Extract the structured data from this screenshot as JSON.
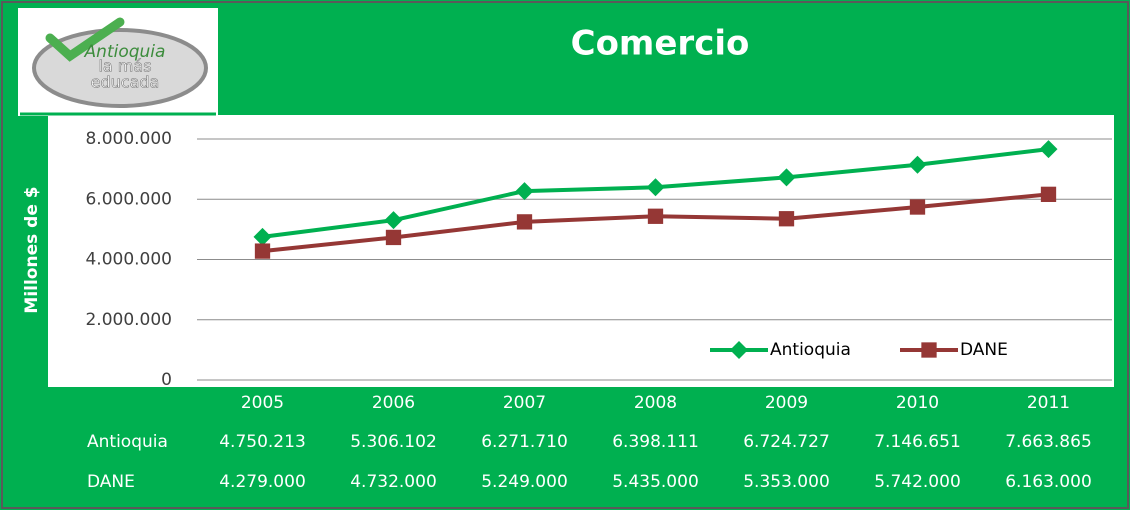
{
  "logo": [
    "Antioquia",
    "la más",
    "educada"
  ],
  "chart_data": {
    "type": "line",
    "title": "Comercio",
    "y_label": "Millones de $",
    "categories": [
      "2005",
      "2006",
      "2007",
      "2008",
      "2009",
      "2010",
      "2011"
    ],
    "series": [
      {
        "name": "Antioquia",
        "color": "#00b050",
        "marker": "diamond",
        "values": [
          4750213,
          5306102,
          6271710,
          6398111,
          6724727,
          7146651,
          7663865
        ],
        "value_labels": [
          "4.750.213",
          "5.306.102",
          "6.271.710",
          "6.398.111",
          "6.724.727",
          "7.146.651",
          "7.663.865"
        ]
      },
      {
        "name": "DANE",
        "color": "#953735",
        "marker": "square",
        "values": [
          4279000,
          4732000,
          5249000,
          5435000,
          5353000,
          5742000,
          6163000
        ],
        "value_labels": [
          "4.279.000",
          "4.732.000",
          "5.249.000",
          "5.435.000",
          "5.353.000",
          "5.742.000",
          "6.163.000"
        ]
      }
    ],
    "ylim": [
      0,
      8000000
    ],
    "yticks": [
      0,
      {
        "value": 2000000,
        "label": "2.000.000"
      },
      {
        "value": 4000000,
        "label": "4.000.000"
      },
      {
        "value": 6000000,
        "label": "6.000.000"
      },
      {
        "value": 8000000,
        "label": "8.000.000"
      }
    ],
    "grid": true,
    "legend": "lower right",
    "data_table": true
  }
}
